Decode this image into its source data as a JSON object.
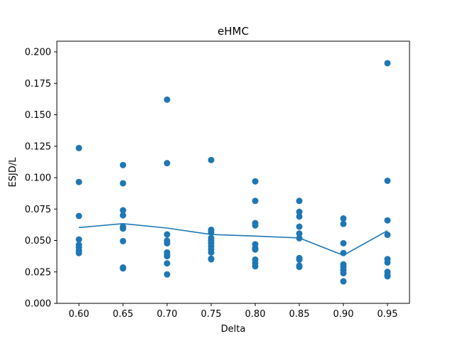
{
  "chart_data": {
    "type": "scatter",
    "title": "eHMC",
    "xlabel": "Delta",
    "ylabel": "ESJD/L",
    "xlim": [
      0.575,
      0.975
    ],
    "ylim": [
      0.0,
      0.2085
    ],
    "xticks": [
      0.6,
      0.65,
      0.7,
      0.75,
      0.8,
      0.85,
      0.9,
      0.95
    ],
    "xtick_labels": [
      "0.60",
      "0.65",
      "0.70",
      "0.75",
      "0.80",
      "0.85",
      "0.90",
      "0.95"
    ],
    "yticks": [
      0.0,
      0.025,
      0.05,
      0.075,
      0.1,
      0.125,
      0.15,
      0.175,
      0.2
    ],
    "ytick_labels": [
      "0.000",
      "0.025",
      "0.050",
      "0.075",
      "0.100",
      "0.125",
      "0.150",
      "0.175",
      "0.200"
    ],
    "grid": false,
    "color": "#1f77b4",
    "points": [
      {
        "x": 0.6,
        "ys": [
          0.1235,
          0.0965,
          0.0695,
          0.0508,
          0.0465,
          0.0445,
          0.042,
          0.04
        ]
      },
      {
        "x": 0.65,
        "ys": [
          0.11,
          0.0955,
          0.074,
          0.07,
          0.061,
          0.0595,
          0.0495,
          0.0285,
          0.0278
        ]
      },
      {
        "x": 0.7,
        "ys": [
          0.162,
          0.1115,
          0.0548,
          0.0498,
          0.0478,
          0.0405,
          0.0385,
          0.0375,
          0.0318,
          0.023
        ]
      },
      {
        "x": 0.75,
        "ys": [
          0.114,
          0.0585,
          0.0565,
          0.052,
          0.05,
          0.048,
          0.0455,
          0.043,
          0.0405,
          0.0355,
          0.035
        ]
      },
      {
        "x": 0.8,
        "ys": [
          0.097,
          0.0815,
          0.0638,
          0.062,
          0.047,
          0.044,
          0.0428,
          0.0348,
          0.032,
          0.0295
        ]
      },
      {
        "x": 0.85,
        "ys": [
          0.0815,
          0.0728,
          0.069,
          0.061,
          0.0555,
          0.0518,
          0.036,
          0.0348,
          0.03,
          0.029
        ]
      },
      {
        "x": 0.9,
        "ys": [
          0.0675,
          0.0632,
          0.0478,
          0.04,
          0.031,
          0.029,
          0.0265,
          0.024,
          0.0175
        ]
      },
      {
        "x": 0.95,
        "ys": [
          0.191,
          0.0975,
          0.066,
          0.0545,
          0.0352,
          0.0325,
          0.025,
          0.0225,
          0.0215
        ]
      }
    ],
    "mean_line": {
      "x": [
        0.6,
        0.65,
        0.7,
        0.75,
        0.8,
        0.85,
        0.9,
        0.95
      ],
      "y": [
        0.0603,
        0.0634,
        0.0599,
        0.0548,
        0.0535,
        0.052,
        0.0382,
        0.0578
      ]
    }
  }
}
